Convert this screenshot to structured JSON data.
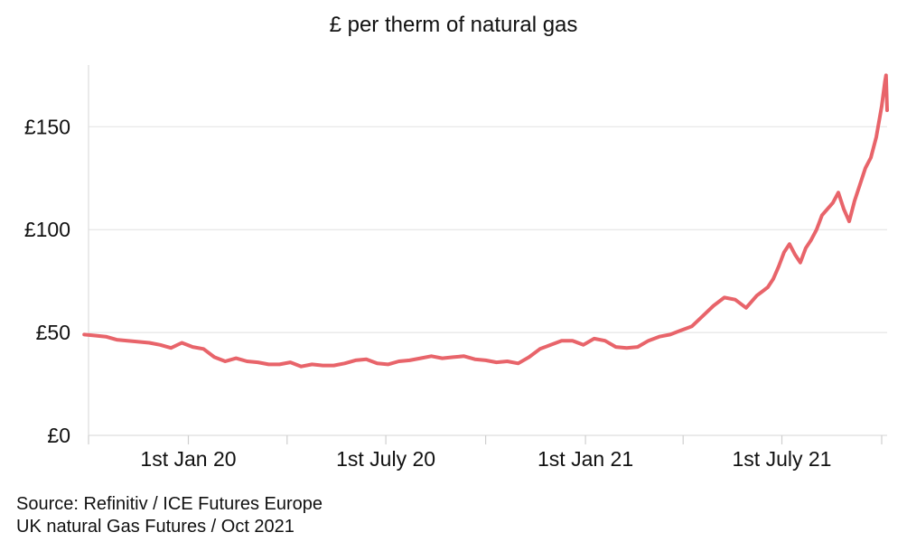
{
  "chart_data": {
    "type": "line",
    "title": "£ per therm of natural gas",
    "xlabel": "",
    "ylabel": "",
    "x_range": [
      "2019-10-01",
      "2021-10-06"
    ],
    "ylim": [
      0,
      180
    ],
    "y_ticks": [
      {
        "value": 0,
        "label": "£0"
      },
      {
        "value": 50,
        "label": "£50"
      },
      {
        "value": 100,
        "label": "£100"
      },
      {
        "value": 150,
        "label": "£150"
      }
    ],
    "x_tick_marks": [
      "2019-10-01",
      "2020-01-01",
      "2020-04-01",
      "2020-07-01",
      "2020-10-01",
      "2021-01-01",
      "2021-04-01",
      "2021-07-01",
      "2021-10-01"
    ],
    "x_tick_labels": [
      {
        "date": "2020-01-01",
        "label": "1st Jan 20"
      },
      {
        "date": "2020-07-01",
        "label": "1st July 20"
      },
      {
        "date": "2021-01-01",
        "label": "1st Jan 21"
      },
      {
        "date": "2021-07-01",
        "label": "1st July 21"
      }
    ],
    "grid": true,
    "line_color": "#e8646a",
    "series": [
      {
        "x": [
          "2019-09-27",
          "2019-10-07",
          "2019-10-17",
          "2019-10-27",
          "2019-11-06",
          "2019-11-16",
          "2019-11-26",
          "2019-12-06",
          "2019-12-16",
          "2019-12-26",
          "2020-01-05",
          "2020-01-15",
          "2020-01-25",
          "2020-02-04",
          "2020-02-14",
          "2020-02-24",
          "2020-03-05",
          "2020-03-15",
          "2020-03-25",
          "2020-04-04",
          "2020-04-14",
          "2020-04-24",
          "2020-05-04",
          "2020-05-14",
          "2020-05-24",
          "2020-06-03",
          "2020-06-13",
          "2020-06-23",
          "2020-07-03",
          "2020-07-13",
          "2020-07-23",
          "2020-08-02",
          "2020-08-12",
          "2020-08-22",
          "2020-09-01",
          "2020-09-11",
          "2020-09-21",
          "2020-10-01",
          "2020-10-11",
          "2020-10-21",
          "2020-10-31",
          "2020-11-10",
          "2020-11-20",
          "2020-11-30",
          "2020-12-10",
          "2020-12-20",
          "2020-12-30",
          "2021-01-09",
          "2021-01-19",
          "2021-01-29",
          "2021-02-08",
          "2021-02-18",
          "2021-02-28",
          "2021-03-10",
          "2021-03-20",
          "2021-03-30",
          "2021-04-09",
          "2021-04-19",
          "2021-04-29",
          "2021-05-09",
          "2021-05-19",
          "2021-05-29",
          "2021-06-08",
          "2021-06-13",
          "2021-06-18",
          "2021-06-23",
          "2021-06-28",
          "2021-07-03",
          "2021-07-08",
          "2021-07-13",
          "2021-07-18",
          "2021-07-23",
          "2021-07-28",
          "2021-08-02",
          "2021-08-07",
          "2021-08-12",
          "2021-08-17",
          "2021-08-22",
          "2021-08-27",
          "2021-09-01",
          "2021-09-06",
          "2021-09-11",
          "2021-09-16",
          "2021-09-21",
          "2021-09-26",
          "2021-10-01",
          "2021-10-04",
          "2021-10-05",
          "2021-10-06"
        ],
        "values": [
          49,
          48.5,
          48,
          46.5,
          46,
          45.5,
          45,
          44,
          42.5,
          45,
          43,
          42,
          38,
          36,
          37.5,
          36,
          35.5,
          34.5,
          34.5,
          35.5,
          33.5,
          34.5,
          34,
          34,
          35,
          36.5,
          37,
          35,
          34.5,
          36,
          36.5,
          37.5,
          38.5,
          37.5,
          38,
          38.5,
          37,
          36.5,
          35.5,
          36,
          35,
          38,
          42,
          44,
          46,
          46,
          44,
          47,
          46,
          43,
          42.5,
          43,
          46,
          48,
          49,
          51,
          53,
          58,
          63,
          67,
          66,
          62,
          68,
          70,
          72,
          76,
          82,
          89,
          93,
          88,
          84,
          91,
          95,
          100,
          107,
          110,
          113,
          118,
          110,
          104,
          114,
          122,
          130,
          135,
          145,
          160,
          172,
          175,
          158
        ]
      }
    ]
  },
  "source": {
    "line1": "Source: Refinitiv / ICE Futures Europe",
    "line2": "UK natural Gas Futures / Oct 2021"
  }
}
